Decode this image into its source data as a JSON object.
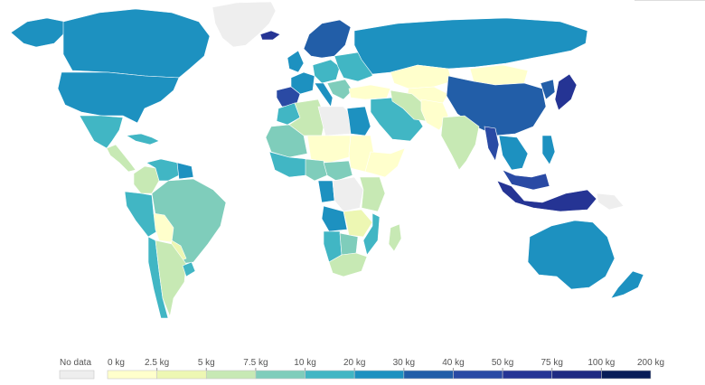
{
  "legend": {
    "no_data_label": "No data",
    "no_data_color": "#eeeeee",
    "bin_labels": [
      "0 kg",
      "2.5 kg",
      "5 kg",
      "7.5 kg",
      "10 kg",
      "20 kg",
      "30 kg",
      "40 kg",
      "50 kg",
      "75 kg",
      "100 kg",
      "200 kg"
    ],
    "bin_colors": [
      "#ffffcc",
      "#edf7b3",
      "#c7e9b4",
      "#7fcdbb",
      "#41b6c4",
      "#1d91c0",
      "#225ea8",
      "#2a4aa4",
      "#253494",
      "#1f2a82",
      "#081d58"
    ]
  },
  "regions": [
    {
      "name": "greenland",
      "color": "#eeeeee"
    },
    {
      "name": "canada",
      "color": "#1d91c0"
    },
    {
      "name": "alaska",
      "color": "#1d91c0"
    },
    {
      "name": "usa",
      "color": "#1d91c0"
    },
    {
      "name": "mexico",
      "color": "#41b6c4"
    },
    {
      "name": "central-america",
      "color": "#c7e9b4"
    },
    {
      "name": "caribbean",
      "color": "#41b6c4"
    },
    {
      "name": "colombia",
      "color": "#c7e9b4"
    },
    {
      "name": "venezuela",
      "color": "#41b6c4"
    },
    {
      "name": "guianas",
      "color": "#1d91c0"
    },
    {
      "name": "peru-ecuador",
      "color": "#41b6c4"
    },
    {
      "name": "brazil",
      "color": "#7fcdbb"
    },
    {
      "name": "bolivia",
      "color": "#ffffcc"
    },
    {
      "name": "paraguay",
      "color": "#edf7b3"
    },
    {
      "name": "chile",
      "color": "#41b6c4"
    },
    {
      "name": "argentina",
      "color": "#c7e9b4"
    },
    {
      "name": "uruguay",
      "color": "#41b6c4"
    },
    {
      "name": "iceland",
      "color": "#253494"
    },
    {
      "name": "scandinavia",
      "color": "#225ea8"
    },
    {
      "name": "uk-ireland",
      "color": "#1d91c0"
    },
    {
      "name": "iberia",
      "color": "#2a4aa4"
    },
    {
      "name": "france",
      "color": "#1d91c0"
    },
    {
      "name": "central-europe",
      "color": "#41b6c4"
    },
    {
      "name": "italy",
      "color": "#1d91c0"
    },
    {
      "name": "balkans",
      "color": "#7fcdbb"
    },
    {
      "name": "eastern-europe",
      "color": "#41b6c4"
    },
    {
      "name": "russia",
      "color": "#1d91c0"
    },
    {
      "name": "turkey",
      "color": "#ffffcc"
    },
    {
      "name": "kazakhstan",
      "color": "#ffffcc"
    },
    {
      "name": "central-asia",
      "color": "#ffffcc"
    },
    {
      "name": "mongolia",
      "color": "#ffffcc"
    },
    {
      "name": "china",
      "color": "#225ea8"
    },
    {
      "name": "korea",
      "color": "#225ea8"
    },
    {
      "name": "japan",
      "color": "#253494"
    },
    {
      "name": "middle-east",
      "color": "#41b6c4"
    },
    {
      "name": "iran",
      "color": "#c7e9b4"
    },
    {
      "name": "afghanistan-pakistan",
      "color": "#ffffcc"
    },
    {
      "name": "india",
      "color": "#c7e9b4"
    },
    {
      "name": "myanmar",
      "color": "#2a4aa4"
    },
    {
      "name": "southeast-asia",
      "color": "#1d91c0"
    },
    {
      "name": "malaysia",
      "color": "#2a4aa4"
    },
    {
      "name": "indonesia",
      "color": "#253494"
    },
    {
      "name": "philippines",
      "color": "#1d91c0"
    },
    {
      "name": "papua",
      "color": "#eeeeee"
    },
    {
      "name": "australia",
      "color": "#1d91c0"
    },
    {
      "name": "new-zealand",
      "color": "#1d91c0"
    },
    {
      "name": "morocco",
      "color": "#41b6c4"
    },
    {
      "name": "algeria",
      "color": "#c7e9b4"
    },
    {
      "name": "libya",
      "color": "#eeeeee"
    },
    {
      "name": "egypt",
      "color": "#1d91c0"
    },
    {
      "name": "west-sahel",
      "color": "#7fcdbb"
    },
    {
      "name": "niger-chad",
      "color": "#ffffcc"
    },
    {
      "name": "sudan",
      "color": "#ffffcc"
    },
    {
      "name": "west-africa-coast",
      "color": "#41b6c4"
    },
    {
      "name": "nigeria",
      "color": "#7fcdbb"
    },
    {
      "name": "central-africa",
      "color": "#7fcdbb"
    },
    {
      "name": "drc",
      "color": "#eeeeee"
    },
    {
      "name": "gabon-congo",
      "color": "#1d91c0"
    },
    {
      "name": "horn-of-africa",
      "color": "#ffffcc"
    },
    {
      "name": "east-africa",
      "color": "#c7e9b4"
    },
    {
      "name": "angola",
      "color": "#1d91c0"
    },
    {
      "name": "zambia-zimbabwe",
      "color": "#edf7b3"
    },
    {
      "name": "mozambique",
      "color": "#41b6c4"
    },
    {
      "name": "namibia",
      "color": "#41b6c4"
    },
    {
      "name": "botswana",
      "color": "#7fcdbb"
    },
    {
      "name": "south-africa",
      "color": "#c7e9b4"
    },
    {
      "name": "madagascar",
      "color": "#c7e9b4"
    }
  ]
}
